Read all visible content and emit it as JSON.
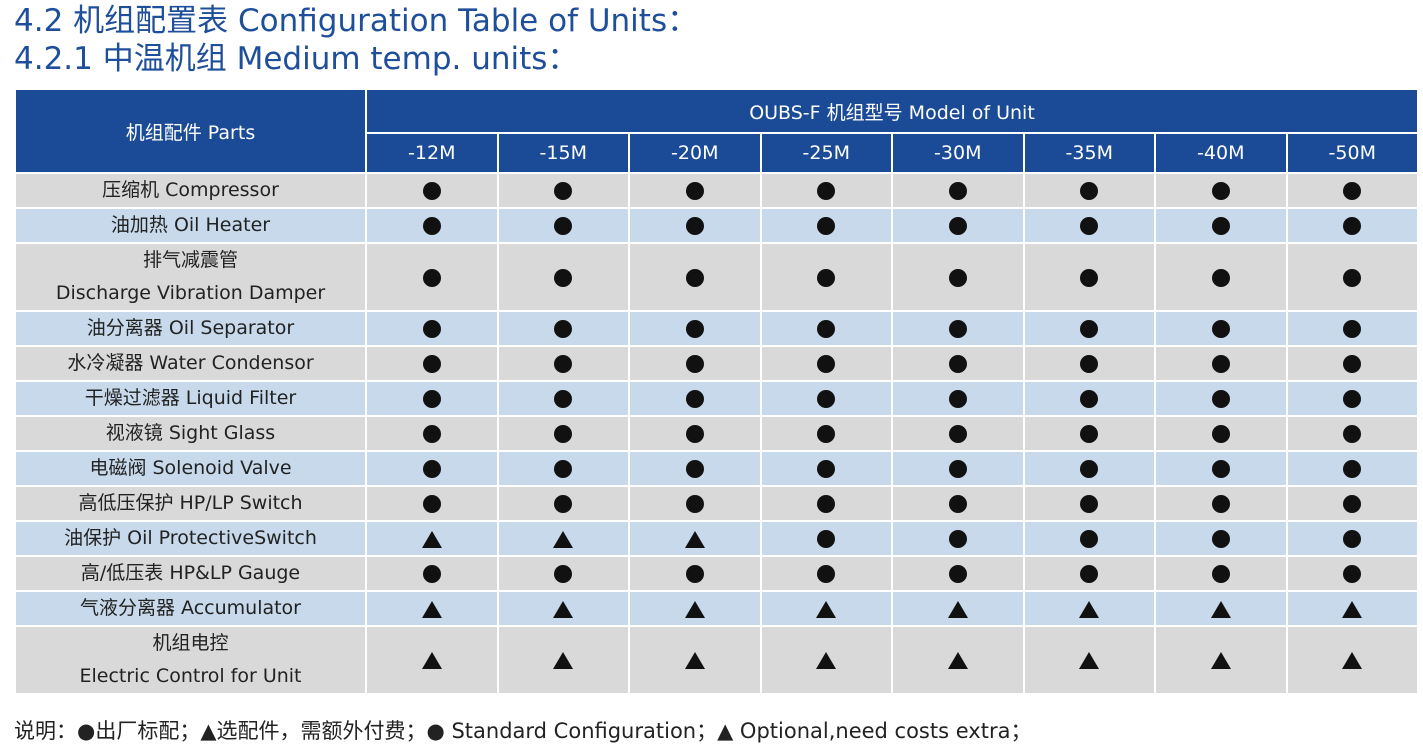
{
  "titles": {
    "section": "4.2 机组配置表 Configuration Table of Units：",
    "subsection": "4.2.1 中温机组 Medium temp. units："
  },
  "table": {
    "parts_header": "机组配件 Parts",
    "model_header": "OUBS-F 机组型号 Model of Unit",
    "models": [
      "-12M",
      "-15M",
      "-20M",
      "-25M",
      "-30M",
      "-35M",
      "-40M",
      "-50M"
    ],
    "rows": [
      {
        "label": [
          "压缩机 Compressor"
        ],
        "values": [
          "standard",
          "standard",
          "standard",
          "standard",
          "standard",
          "standard",
          "standard",
          "standard"
        ]
      },
      {
        "label": [
          "油加热 Oil Heater"
        ],
        "values": [
          "standard",
          "standard",
          "standard",
          "standard",
          "standard",
          "standard",
          "standard",
          "standard"
        ]
      },
      {
        "label": [
          "排气减震管",
          "Discharge Vibration Damper"
        ],
        "values": [
          "standard",
          "standard",
          "standard",
          "standard",
          "standard",
          "standard",
          "standard",
          "standard"
        ]
      },
      {
        "label": [
          "油分离器 Oil Separator"
        ],
        "values": [
          "standard",
          "standard",
          "standard",
          "standard",
          "standard",
          "standard",
          "standard",
          "standard"
        ]
      },
      {
        "label": [
          "水冷凝器 Water Condensor"
        ],
        "values": [
          "standard",
          "standard",
          "standard",
          "standard",
          "standard",
          "standard",
          "standard",
          "standard"
        ]
      },
      {
        "label": [
          "干燥过滤器  Liquid Filter"
        ],
        "values": [
          "standard",
          "standard",
          "standard",
          "standard",
          "standard",
          "standard",
          "standard",
          "standard"
        ]
      },
      {
        "label": [
          "视液镜 Sight Glass"
        ],
        "values": [
          "standard",
          "standard",
          "standard",
          "standard",
          "standard",
          "standard",
          "standard",
          "standard"
        ]
      },
      {
        "label": [
          "电磁阀 Solenoid Valve"
        ],
        "values": [
          "standard",
          "standard",
          "standard",
          "standard",
          "standard",
          "standard",
          "standard",
          "standard"
        ]
      },
      {
        "label": [
          "高低压保护 HP/LP Switch"
        ],
        "values": [
          "standard",
          "standard",
          "standard",
          "standard",
          "standard",
          "standard",
          "standard",
          "standard"
        ]
      },
      {
        "label": [
          "油保护 Oil ProtectiveSwitch"
        ],
        "values": [
          "optional",
          "optional",
          "optional",
          "standard",
          "standard",
          "standard",
          "standard",
          "standard"
        ]
      },
      {
        "label": [
          "高/低压表 HP&LP Gauge"
        ],
        "values": [
          "standard",
          "standard",
          "standard",
          "standard",
          "standard",
          "standard",
          "standard",
          "standard"
        ]
      },
      {
        "label": [
          "气液分离器 Accumulator"
        ],
        "values": [
          "optional",
          "optional",
          "optional",
          "optional",
          "optional",
          "optional",
          "optional",
          "optional"
        ]
      },
      {
        "label": [
          "机组电控",
          "Electric Control for Unit"
        ],
        "values": [
          "optional",
          "optional",
          "optional",
          "optional",
          "optional",
          "optional",
          "optional",
          "optional"
        ]
      }
    ]
  },
  "legend_note": "说明：●出厂标配；▲选配件，需额外付费；● Standard Configuration；▲ Optional,need costs extra；",
  "colors": {
    "title": "#1f4f9b",
    "header_bg": "#1b4b96",
    "row_gray": "#d9d9d9",
    "row_blue": "#c7d9ea"
  }
}
